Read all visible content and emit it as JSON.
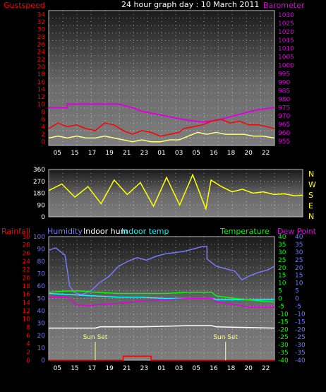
{
  "header": {
    "title": "24 hour graph day : 10 March 2011",
    "left_label": "Gustspeed",
    "right_label": "Barometer"
  },
  "colors": {
    "gust": "#ff0000",
    "wind": "#ffff80",
    "wind_alt": "#7aa0ff",
    "baro": "#e000e0",
    "dir": "#ffff00",
    "rain": "#ff0000",
    "humidity": "#7878ff",
    "indoor_hum": "#ffffff",
    "indoor_temp": "#00ffff",
    "temperature": "#00ff00",
    "dew": "#e000e0",
    "sun": "#ffff80"
  },
  "chart_data": [
    {
      "type": "line",
      "x_ticks": [
        "05",
        "15",
        "17",
        "19",
        "21",
        "23",
        "01",
        "03",
        "05",
        "16",
        "18",
        "20",
        "22"
      ],
      "y_left": {
        "label": "Gustspeed",
        "range": [
          0,
          36
        ],
        "ticks": [
          "0",
          "2",
          "4",
          "6",
          "8",
          "10",
          "12",
          "14",
          "16",
          "18",
          "20",
          "22",
          "24",
          "26",
          "28",
          "30",
          "32",
          "34"
        ]
      },
      "y_right": {
        "label": "Barometer",
        "range": [
          955,
          1030
        ],
        "ticks": [
          "955",
          "960",
          "965",
          "970",
          "975",
          "980",
          "985",
          "990",
          "995",
          "1000",
          "1005",
          "1010",
          "1015",
          "1020",
          "1025",
          "1030"
        ]
      },
      "series": [
        {
          "key": "baro",
          "axis": "right",
          "points": [
            [
              0,
              976
            ],
            [
              8,
              976
            ],
            [
              8,
              978
            ],
            [
              30,
              978
            ],
            [
              36,
              976
            ],
            [
              40,
              974
            ],
            [
              48,
              972
            ],
            [
              56,
              970
            ],
            [
              60,
              969
            ],
            [
              66,
              968
            ],
            [
              72,
              969
            ],
            [
              78,
              971
            ],
            [
              84,
              973
            ],
            [
              90,
              975
            ],
            [
              97,
              976
            ]
          ]
        },
        {
          "key": "gust",
          "axis": "left",
          "points": [
            [
              0,
              4.5
            ],
            [
              4,
              6
            ],
            [
              8,
              5
            ],
            [
              12,
              5.5
            ],
            [
              16,
              4.5
            ],
            [
              20,
              4
            ],
            [
              24,
              6
            ],
            [
              28,
              5.5
            ],
            [
              32,
              4
            ],
            [
              36,
              3
            ],
            [
              40,
              4
            ],
            [
              44,
              3.5
            ],
            [
              48,
              2.5
            ],
            [
              52,
              3
            ],
            [
              56,
              3.5
            ],
            [
              58,
              4.5
            ],
            [
              62,
              5
            ],
            [
              66,
              5.5
            ],
            [
              70,
              6.5
            ],
            [
              74,
              7
            ],
            [
              78,
              6
            ],
            [
              82,
              6.5
            ],
            [
              86,
              5.5
            ],
            [
              90,
              5.5
            ],
            [
              94,
              5
            ],
            [
              97,
              4.5
            ]
          ]
        },
        {
          "key": "wind",
          "axis": "left",
          "points": [
            [
              0,
              2
            ],
            [
              4,
              2.5
            ],
            [
              8,
              2
            ],
            [
              12,
              2.5
            ],
            [
              16,
              2
            ],
            [
              20,
              2
            ],
            [
              24,
              2.5
            ],
            [
              28,
              2
            ],
            [
              32,
              1.5
            ],
            [
              36,
              1
            ],
            [
              40,
              1.5
            ],
            [
              44,
              1
            ],
            [
              48,
              1
            ],
            [
              52,
              1.5
            ],
            [
              56,
              1.5
            ],
            [
              60,
              2.5
            ],
            [
              64,
              3.5
            ],
            [
              68,
              3
            ],
            [
              72,
              3.5
            ],
            [
              76,
              3
            ],
            [
              80,
              3
            ],
            [
              84,
              3
            ],
            [
              88,
              2.5
            ],
            [
              92,
              2.5
            ],
            [
              97,
              2
            ]
          ]
        }
      ]
    },
    {
      "type": "line",
      "x_ticks": [],
      "y_left": {
        "range": [
          0,
          360
        ],
        "ticks": [
          "0",
          "90",
          "180",
          "270",
          "360"
        ]
      },
      "compass": [
        "N",
        "W",
        "S",
        "E",
        "N"
      ],
      "series": [
        {
          "key": "dir",
          "points": [
            [
              0,
              200
            ],
            [
              5,
              250
            ],
            [
              10,
              150
            ],
            [
              15,
              230
            ],
            [
              20,
              100
            ],
            [
              25,
              280
            ],
            [
              30,
              170
            ],
            [
              35,
              260
            ],
            [
              40,
              80
            ],
            [
              45,
              300
            ],
            [
              50,
              90
            ],
            [
              55,
              320
            ],
            [
              60,
              60
            ],
            [
              62,
              280
            ],
            [
              66,
              230
            ],
            [
              70,
              190
            ],
            [
              74,
              210
            ],
            [
              78,
              180
            ],
            [
              82,
              190
            ],
            [
              86,
              170
            ],
            [
              90,
              175
            ],
            [
              94,
              160
            ],
            [
              97,
              165
            ]
          ]
        }
      ]
    },
    {
      "type": "line",
      "x_ticks": [
        "05",
        "15",
        "17",
        "19",
        "21",
        "23",
        "01",
        "03",
        "05",
        "16",
        "18",
        "20",
        "22"
      ],
      "legend": [
        "Rainfall",
        "Humidity",
        "Indoor hum",
        "Indoor temp",
        "Temperature",
        "Dew Point"
      ],
      "annotations": [
        "Sun Set",
        "Sun Set"
      ],
      "sun_set_x": [
        20,
        76
      ],
      "axis_rain": {
        "label": "Rainfall",
        "ticks": [
          "0",
          "2",
          "4",
          "6",
          "8",
          "10",
          "12",
          "14",
          "16",
          "18",
          "20",
          "22",
          "24",
          "26",
          "28",
          "30"
        ]
      },
      "axis_hum": {
        "label": "Humidity",
        "ticks": [
          "0",
          "10",
          "20",
          "30",
          "40",
          "50",
          "60",
          "70",
          "80",
          "90",
          "100"
        ]
      },
      "axis_temp": {
        "label": "Temperature",
        "range": [
          -40,
          40
        ],
        "ticks": [
          "40",
          "35",
          "30",
          "25",
          "20",
          "15",
          "10",
          "5",
          "0",
          "-5",
          "-10",
          "-15",
          "-20",
          "-25",
          "-30",
          "-35",
          "-40"
        ]
      },
      "axis_dew": {
        "label": "Dew Point",
        "ticks": [
          "40",
          "35",
          "30",
          "25",
          "20",
          "15",
          "10",
          "5",
          "0",
          "-5",
          "-10",
          "-15",
          "-20",
          "-25",
          "-30",
          "-35",
          "-40"
        ]
      },
      "series": [
        {
          "key": "humidity",
          "axis": "hum",
          "points": [
            [
              0,
              89
            ],
            [
              3,
              91
            ],
            [
              7,
              85
            ],
            [
              9,
              60
            ],
            [
              11,
              55
            ],
            [
              14,
              53
            ],
            [
              18,
              56
            ],
            [
              22,
              63
            ],
            [
              26,
              68
            ],
            [
              30,
              76
            ],
            [
              34,
              80
            ],
            [
              38,
              83
            ],
            [
              42,
              81
            ],
            [
              46,
              84
            ],
            [
              50,
              86
            ],
            [
              54,
              87
            ],
            [
              58,
              88
            ],
            [
              62,
              90
            ],
            [
              66,
              92
            ],
            [
              68,
              92
            ],
            [
              68,
              82
            ],
            [
              72,
              76
            ],
            [
              76,
              74
            ],
            [
              80,
              72
            ],
            [
              83,
              65
            ],
            [
              86,
              68
            ],
            [
              90,
              71
            ],
            [
              94,
              73
            ],
            [
              97,
              76
            ]
          ]
        },
        {
          "key": "indoor_hum",
          "axis": "hum",
          "points": [
            [
              0,
              26
            ],
            [
              20,
              26
            ],
            [
              22,
              27
            ],
            [
              40,
              27
            ],
            [
              60,
              28
            ],
            [
              70,
              28
            ],
            [
              72,
              27
            ],
            [
              97,
              26
            ]
          ]
        },
        {
          "key": "indoor_temp",
          "axis": "hum",
          "points": [
            [
              0,
              54
            ],
            [
              10,
              53
            ],
            [
              20,
              52
            ],
            [
              30,
              51
            ],
            [
              40,
              51
            ],
            [
              50,
              50
            ],
            [
              60,
              50
            ],
            [
              70,
              50
            ],
            [
              72,
              49
            ],
            [
              80,
              49
            ],
            [
              90,
              49
            ],
            [
              97,
              49
            ]
          ]
        },
        {
          "key": "temperature",
          "axis": "hum",
          "points": [
            [
              0,
              55
            ],
            [
              8,
              56
            ],
            [
              14,
              56
            ],
            [
              20,
              55
            ],
            [
              30,
              54
            ],
            [
              40,
              54
            ],
            [
              50,
              54
            ],
            [
              60,
              55
            ],
            [
              70,
              55
            ],
            [
              72,
              52
            ],
            [
              80,
              50
            ],
            [
              90,
              48
            ],
            [
              97,
              47
            ]
          ]
        },
        {
          "key": "dew",
          "axis": "hum",
          "points": [
            [
              0,
              51
            ],
            [
              8,
              51
            ],
            [
              12,
              45
            ],
            [
              16,
              44
            ],
            [
              22,
              45
            ],
            [
              30,
              46
            ],
            [
              40,
              48
            ],
            [
              50,
              49
            ],
            [
              60,
              50
            ],
            [
              70,
              50
            ],
            [
              72,
              47
            ],
            [
              80,
              45
            ],
            [
              86,
              43
            ],
            [
              92,
              43
            ],
            [
              97,
              43
            ]
          ]
        },
        {
          "key": "rain",
          "axis": "rain",
          "points": [
            [
              0,
              0
            ],
            [
              32,
              0
            ],
            [
              32,
              1
            ],
            [
              44,
              1
            ],
            [
              44,
              0
            ],
            [
              97,
              0
            ]
          ]
        }
      ]
    }
  ]
}
